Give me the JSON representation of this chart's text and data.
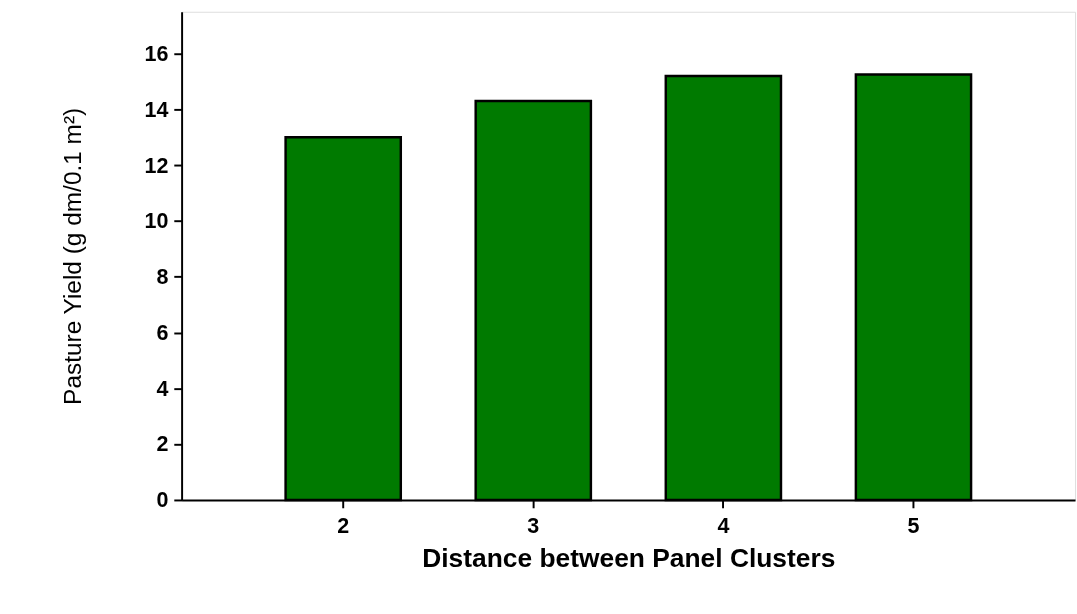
{
  "chart_data": {
    "type": "bar",
    "xlabel": "Distance between Panel Clusters",
    "ylabel": "Pasture Yield (g dm/0.1 m²)",
    "categories": [
      "2",
      "3",
      "4",
      "5"
    ],
    "values": [
      13.0,
      14.3,
      15.2,
      15.25
    ],
    "color": "#007a00",
    "ylim": [
      0,
      17.5
    ],
    "yticks": [
      0,
      2,
      4,
      6,
      8,
      10,
      12,
      14,
      16
    ],
    "grid": false
  }
}
